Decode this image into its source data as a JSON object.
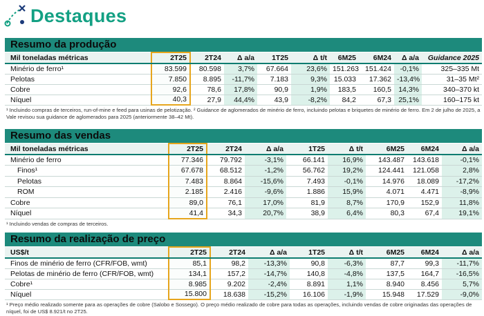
{
  "title": "Destaques",
  "sections": [
    {
      "title": "Resumo da produção",
      "header": [
        "Mil toneladas métricas",
        "2T25",
        "2T24",
        "Δ a/a",
        "1T25",
        "Δ t/t",
        "6M25",
        "6M24",
        "Δ a/a",
        "Guidance 2025"
      ],
      "rows": [
        [
          "Minério de ferro¹",
          "83.599",
          "80.598",
          "3,7%",
          "67.664",
          "23,6%",
          "151.263",
          "151.424",
          "-0,1%",
          "325–335 Mt"
        ],
        [
          "Pelotas",
          "7.850",
          "8.895",
          "-11,7%",
          "7.183",
          "9,3%",
          "15.033",
          "17.362",
          "-13,4%",
          "31–35 Mt²"
        ],
        [
          "Cobre",
          "92,6",
          "78,6",
          "17,8%",
          "90,9",
          "1,9%",
          "183,5",
          "160,5",
          "14,3%",
          "340–370 kt"
        ],
        [
          "Níquel",
          "40,3",
          "27,9",
          "44,4%",
          "43,9",
          "-8,2%",
          "84,2",
          "67,3",
          "25,1%",
          "160–175 kt"
        ]
      ],
      "footnote": "¹ Incluindo compras de terceiros, run-of-mine e feed para usinas de pelotização. ² Guidance de aglomerados de minério de ferro, incluindo pelotas e briquetes de minério de ferro. Em 2 de julho de 2025, a Vale revisou sua guidance de aglomerados para 2025 (anteriormente 38–42 Mt)."
    },
    {
      "title": "Resumo das vendas",
      "header": [
        "Mil toneladas métricas",
        "2T25",
        "2T24",
        "Δ a/a",
        "1T25",
        "Δ t/t",
        "6M25",
        "6M24",
        "Δ a/a"
      ],
      "rows": [
        [
          "Minério de ferro",
          "77.346",
          "79.792",
          "-3,1%",
          "66.141",
          "16,9%",
          "143.487",
          "143.618",
          "-0,1%"
        ],
        [
          "Finos¹",
          "67.678",
          "68.512",
          "-1,2%",
          "56.762",
          "19,2%",
          "124.441",
          "121.058",
          "2,8%"
        ],
        [
          "Pelotas",
          "7.483",
          "8.864",
          "-15,6%",
          "7.493",
          "-0,1%",
          "14.976",
          "18.089",
          "-17,2%"
        ],
        [
          "ROM",
          "2.185",
          "2.416",
          "-9,6%",
          "1.886",
          "15,9%",
          "4.071",
          "4.471",
          "-8,9%"
        ],
        [
          "Cobre",
          "89,0",
          "76,1",
          "17,0%",
          "81,9",
          "8,7%",
          "170,9",
          "152,9",
          "11,8%"
        ],
        [
          "Níquel",
          "41,4",
          "34,3",
          "20,7%",
          "38,9",
          "6,4%",
          "80,3",
          "67,4",
          "19,1%"
        ]
      ],
      "footnote": "¹ Incluindo vendas de compras de terceiros."
    },
    {
      "title": "Resumo da realização de preço",
      "header": [
        "US$/t",
        "2T25",
        "2T24",
        "Δ a/a",
        "1T25",
        "Δ t/t",
        "6M25",
        "6M24",
        "Δ a/a"
      ],
      "rows": [
        [
          "Finos de minério de ferro (CFR/FOB, wmt)",
          "85,1",
          "98,2",
          "-13,3%",
          "90,8",
          "-6,3%",
          "87,7",
          "99,3",
          "-11,7%"
        ],
        [
          "Pelotas de minério de ferro (CFR/FOB, wmt)",
          "134,1",
          "157,2",
          "-14,7%",
          "140,8",
          "-4,8%",
          "137,5",
          "164,7",
          "-16,5%"
        ],
        [
          "Cobre¹",
          "8.985",
          "9.202",
          "-2,4%",
          "8.891",
          "1,1%",
          "8.940",
          "8.456",
          "5,7%"
        ],
        [
          "Níquel",
          "15.800",
          "18.638",
          "-15,2%",
          "16.106",
          "-1,9%",
          "15.948",
          "17.529",
          "-9,0%"
        ]
      ],
      "footnote": "¹ Preço médio realizado somente para as operações de cobre (Salobo e Sossego). O preço médio realizado de cobre para todas as operações, incluindo vendas de cobre originadas das operações de níquel, foi de US$ 8.921/t no 2T25."
    }
  ]
}
